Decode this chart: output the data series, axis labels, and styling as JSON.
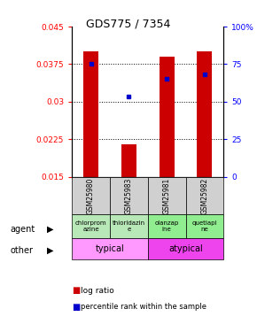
{
  "title": "GDS775 / 7354",
  "samples": [
    "GSM25980",
    "GSM25983",
    "GSM25981",
    "GSM25982"
  ],
  "log_ratio": [
    0.04,
    0.0215,
    0.039,
    0.04
  ],
  "log_ratio_base": [
    0.015,
    0.015,
    0.015,
    0.015
  ],
  "percentile_mapped": [
    0.0375,
    0.031,
    0.0345,
    0.0355
  ],
  "y_min": 0.015,
  "y_max": 0.045,
  "y_ticks": [
    0.015,
    0.0225,
    0.03,
    0.0375,
    0.045
  ],
  "y_tick_labels": [
    "0.015",
    "0.0225",
    "0.03",
    "0.0375",
    "0.045"
  ],
  "y2_labels": [
    "0",
    "25",
    "50",
    "75",
    "100%"
  ],
  "bar_color": "#cc0000",
  "dot_color": "#0000cc",
  "agent_labels": [
    "chlorprom\nazine",
    "thioridazin\ne",
    "olanzap\nine",
    "quetiapi\nne"
  ],
  "agent_bg": [
    "#b8e8b8",
    "#b8e8b8",
    "#90ee90",
    "#90ee90"
  ],
  "typical_color": "#ff99ff",
  "atypical_color": "#ee44ee",
  "sample_bg": "#d0d0d0",
  "bar_width": 0.4
}
